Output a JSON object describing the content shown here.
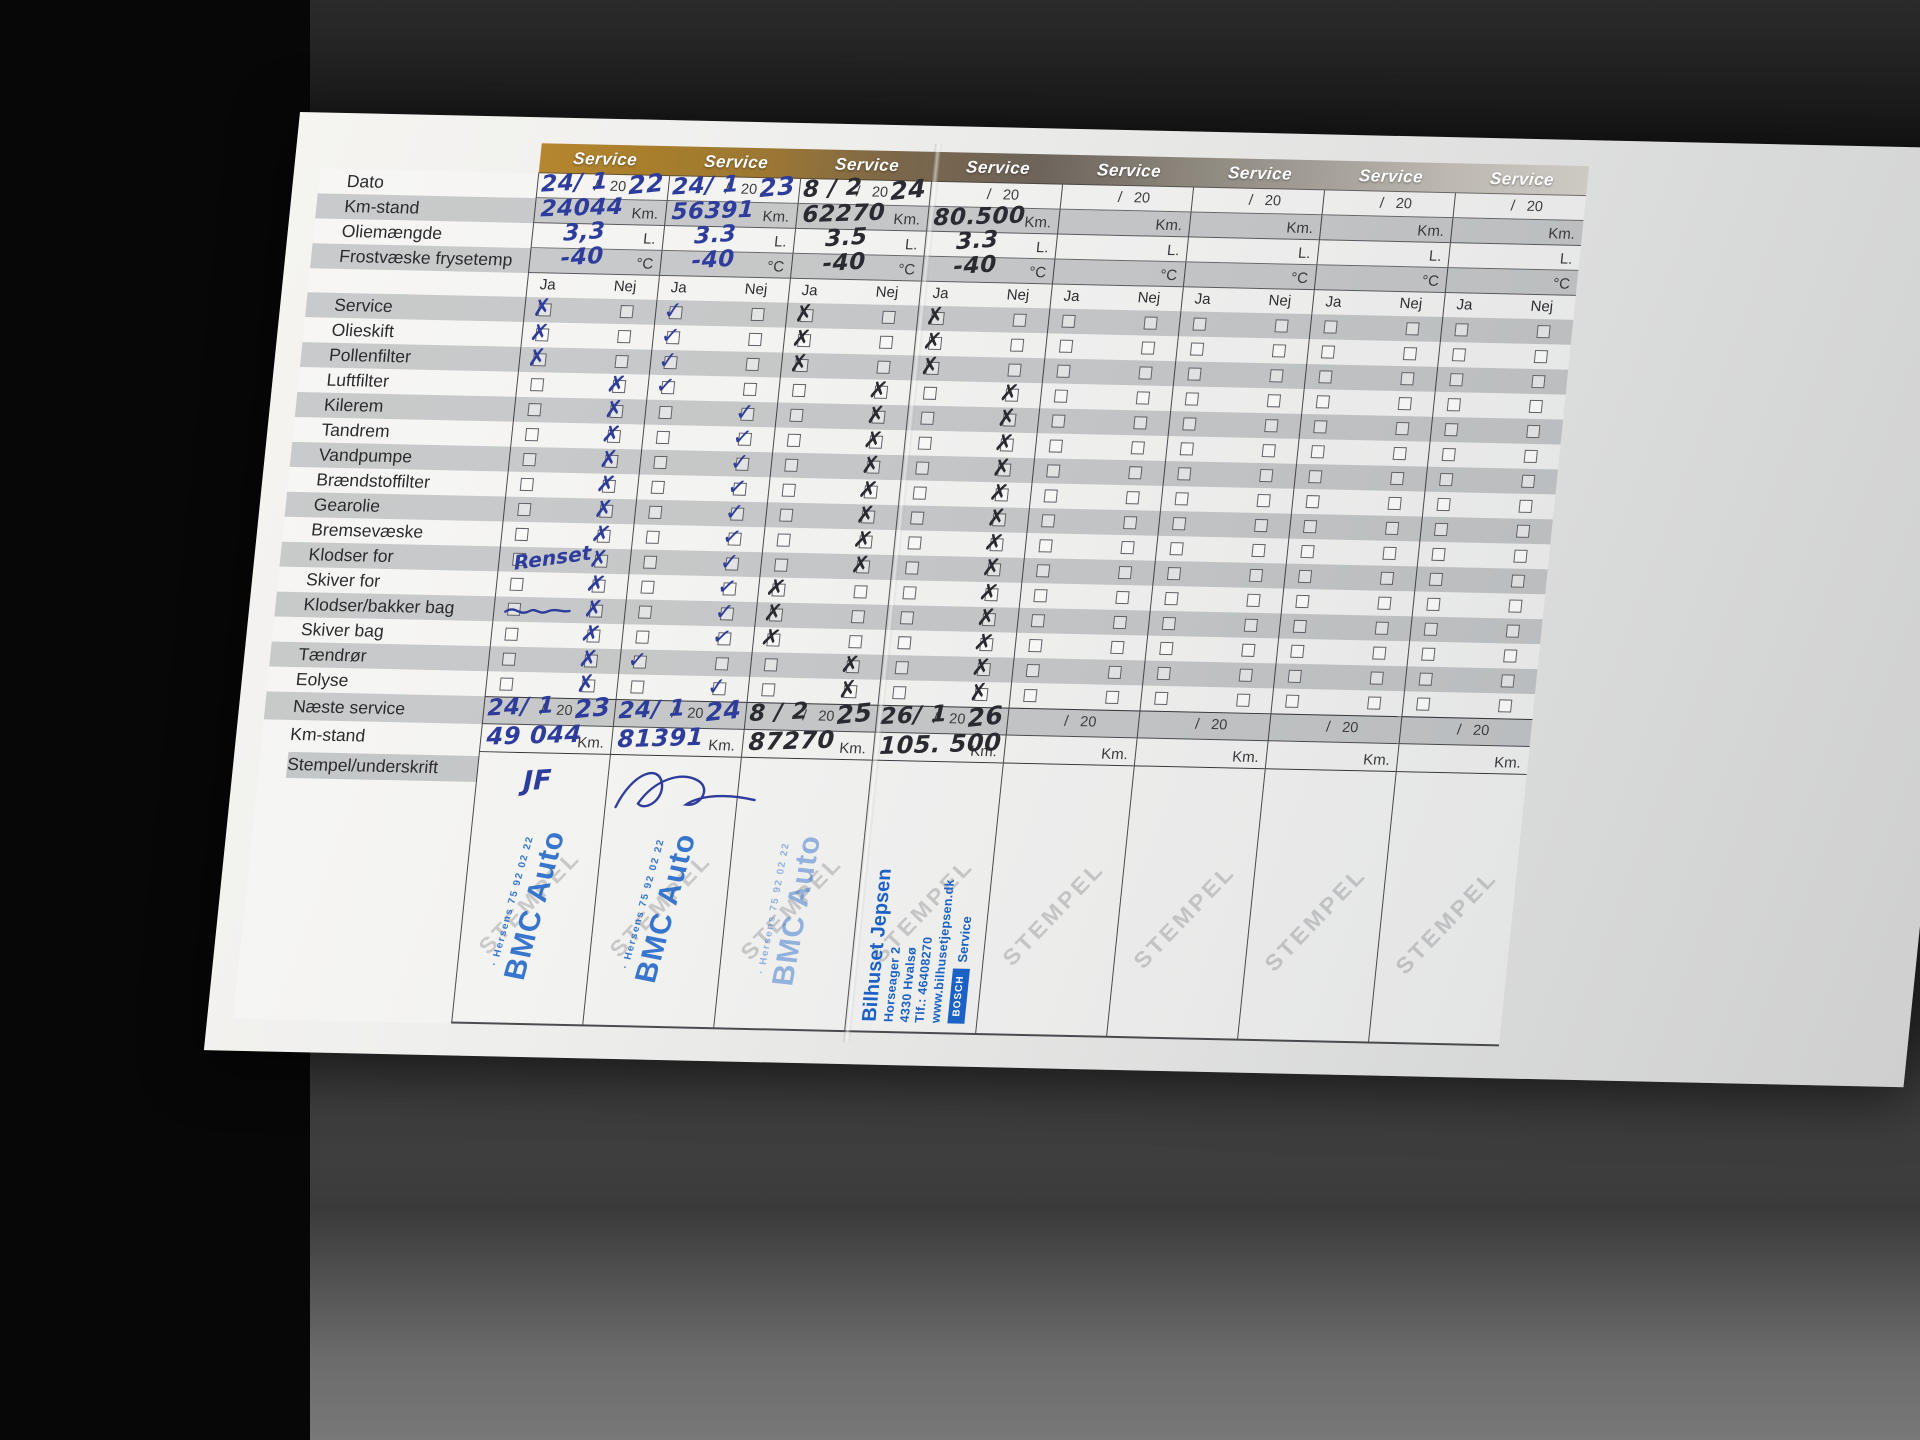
{
  "ink_colors": {
    "blue": "#2e3c9c",
    "black": "#2a2a31"
  },
  "form": {
    "column_header": "Service",
    "info_labels": [
      "Dato",
      "Km-stand",
      "Oliemængde",
      "Frostvæske frysetemp"
    ],
    "check_labels": [
      "Service",
      "Olieskift",
      "Pollenfilter",
      "Luftfilter",
      "Kilerem",
      "Tandrem",
      "Vandpumpe",
      "Brændstoffilter",
      "Gearolie",
      "Bremsevæske",
      "Klodser for",
      "Skiver for",
      "Klodser/bakker bag",
      "Skiver bag",
      "Tændrør",
      "Eolyse"
    ],
    "bottom_labels": {
      "next": "Næste service",
      "km": "Km-stand",
      "stamp": "Stempel/underskrift"
    },
    "ja": "Ja",
    "nej": "Nej",
    "units": {
      "km": "Km.",
      "liter": "L.",
      "temp": "°C",
      "year": "20",
      "slash": "/"
    },
    "watermark": "STEMPEL"
  },
  "stamps": {
    "bmc": {
      "big": "BMC Auto",
      "small": "· Hersens 75 92 02 22"
    },
    "jepsen": {
      "lines": [
        "Bilhuset Jepsen",
        "Horseager 2",
        "4330 Hvalsø",
        "Tlf.: 46408270",
        "www.bilhusetjepsen.dk"
      ],
      "logo": [
        "BOSCH",
        "Service"
      ]
    }
  },
  "columns": [
    {
      "ink": "blue",
      "mark_glyph": "✗",
      "date": {
        "pre": "24/ 1",
        "year": "22"
      },
      "km": "24044",
      "oil": "3,3",
      "frost": "-40",
      "checks": [
        "ja",
        "ja",
        "ja",
        "nej",
        "nej",
        "nej",
        "nej",
        "nej",
        "nej",
        "nej",
        "nej",
        "nej",
        "nej",
        "nej",
        "nej",
        "nej"
      ],
      "note": {
        "row": 10,
        "text": "Renset"
      },
      "scribble_row": 12,
      "next": {
        "pre": "24/ 1",
        "year": "23"
      },
      "next_km": "49 044",
      "signature": "JF",
      "stamp": "bmc"
    },
    {
      "ink": "blue",
      "mark_glyph": "✓",
      "date": {
        "pre": "24/ 1",
        "year": "23"
      },
      "km": "56391",
      "oil": "3.3",
      "frost": "-40",
      "checks": [
        "ja",
        "ja",
        "ja",
        "ja",
        "nej",
        "nej",
        "nej",
        "nej",
        "nej",
        "nej",
        "nej",
        "nej",
        "nej",
        "nej",
        "ja",
        "nej"
      ],
      "next": {
        "pre": "24/ 1",
        "year": "24"
      },
      "next_km": "81391",
      "signature_scribble": true,
      "stamp": "bmc"
    },
    {
      "ink": "black",
      "mark_glyph": "✗",
      "date": {
        "pre": "8 / 2",
        "year": "24"
      },
      "km": "62270",
      "oil": "3.5",
      "frost": "-40",
      "checks": [
        "ja",
        "ja",
        "ja",
        "nej",
        "nej",
        "nej",
        "nej",
        "nej",
        "nej",
        "nej",
        "nej",
        "ja",
        "ja",
        "ja",
        "nej",
        "nej"
      ],
      "next": {
        "pre": "8 / 2",
        "year": "25"
      },
      "next_km": "87270",
      "stamp": "bmc-light"
    },
    {
      "ink": "black",
      "mark_glyph": "✗",
      "date": null,
      "km": "80.500",
      "oil": "3.3",
      "frost": "-40",
      "checks": [
        "ja",
        "ja",
        "ja",
        "nej",
        "nej",
        "nej",
        "nej",
        "nej",
        "nej",
        "nej",
        "nej",
        "nej",
        "nej",
        "nej",
        "nej",
        "nej"
      ],
      "next": {
        "pre": "26/ 1",
        "year": "26"
      },
      "next_km": "105. 500",
      "stamp": "jepsen"
    },
    {
      "ink": "blue",
      "mark_glyph": "✗",
      "date": null,
      "km": "",
      "oil": "",
      "frost": "",
      "checks": [
        "",
        "",
        "",
        "",
        "",
        "",
        "",
        "",
        "",
        "",
        "",
        "",
        "",
        "",
        "",
        ""
      ],
      "next": null,
      "next_km": ""
    },
    {
      "ink": "blue",
      "mark_glyph": "✗",
      "date": null,
      "km": "",
      "oil": "",
      "frost": "",
      "checks": [
        "",
        "",
        "",
        "",
        "",
        "",
        "",
        "",
        "",
        "",
        "",
        "",
        "",
        "",
        "",
        ""
      ],
      "next": null,
      "next_km": ""
    },
    {
      "ink": "blue",
      "mark_glyph": "✗",
      "date": null,
      "km": "",
      "oil": "",
      "frost": "",
      "checks": [
        "",
        "",
        "",
        "",
        "",
        "",
        "",
        "",
        "",
        "",
        "",
        "",
        "",
        "",
        "",
        ""
      ],
      "next": null,
      "next_km": ""
    },
    {
      "ink": "blue",
      "mark_glyph": "✗",
      "date": null,
      "km": "",
      "oil": "",
      "frost": "",
      "checks": [
        "",
        "",
        "",
        "",
        "",
        "",
        "",
        "",
        "",
        "",
        "",
        "",
        "",
        "",
        "",
        ""
      ],
      "next": null,
      "next_km": ""
    }
  ]
}
